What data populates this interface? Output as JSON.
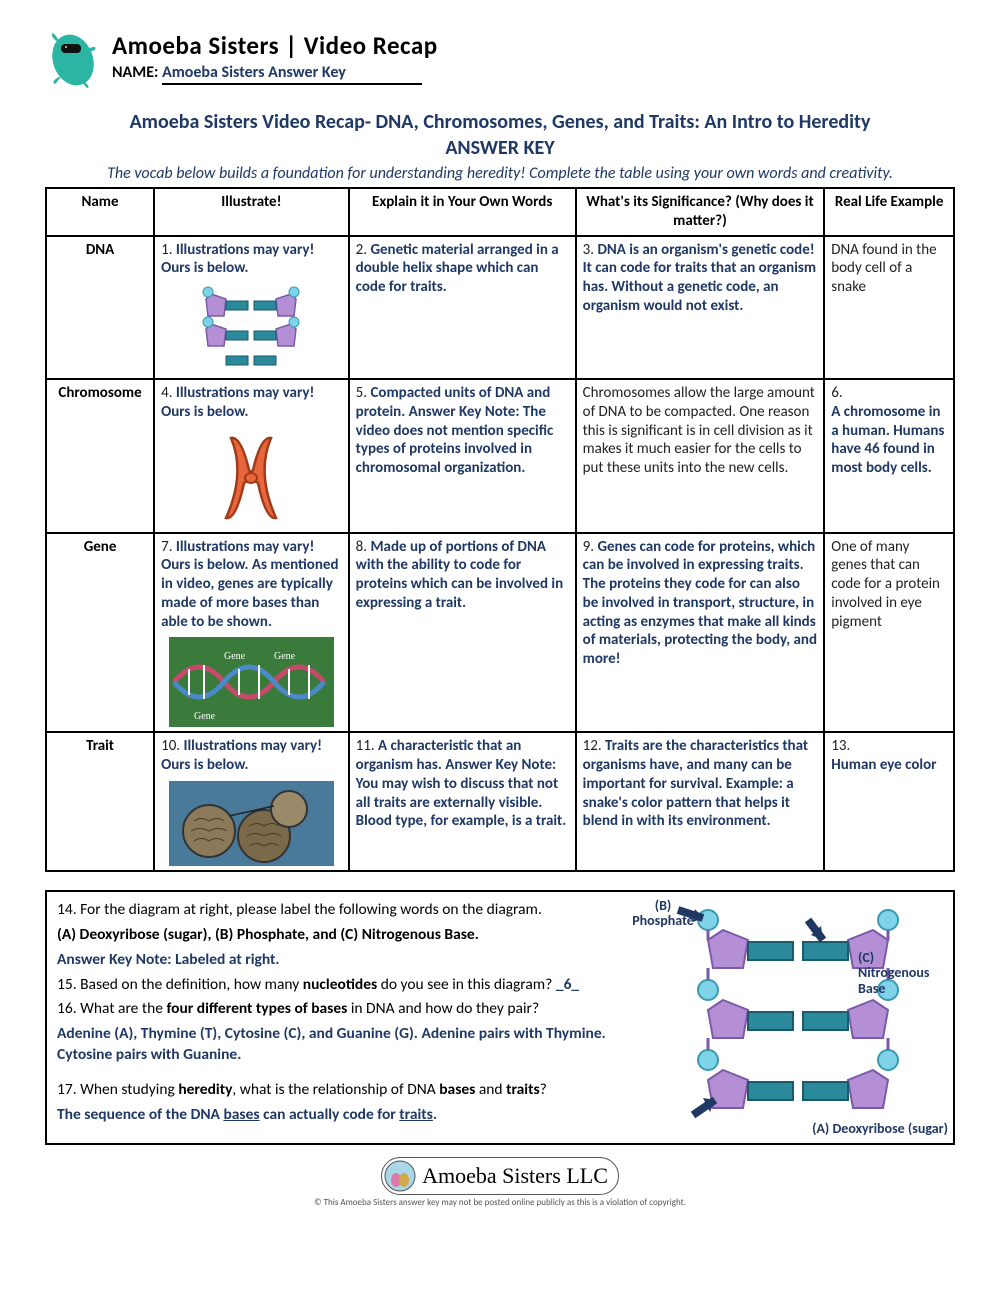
{
  "brand": {
    "title": "Amoeba Sisters | Video Recap",
    "name_label": "NAME:",
    "name_value": "Amoeba Sisters Answer Key"
  },
  "doc": {
    "title": "Amoeba Sisters Video Recap- DNA, Chromosomes, Genes, and Traits: An Intro to Heredity",
    "subtitle": "ANSWER KEY",
    "intro": "The vocab below builds a foundation for understanding heredity! Complete the table using your own words and creativity."
  },
  "headers": {
    "name": "Name",
    "illustrate": "Illustrate!",
    "explain": "Explain it in Your Own Words",
    "significance": "What's its Significance? (Why does it matter?)",
    "real": "Real Life Example"
  },
  "rows": [
    {
      "name": "DNA",
      "illustrate_num": "1.",
      "illustrate_text": "Illustrations may vary! Ours is below.",
      "explain_num": "2.",
      "explain_text": "Genetic material arranged in a double helix shape which can code for traits.",
      "sig_num": "3.",
      "sig_text": "DNA is an organism's genetic code! It can code for traits that an organism has. Without a genetic code, an organism would not exist.",
      "sig_blue": true,
      "real_num": "",
      "real_text": "DNA found in the body cell of a snake",
      "real_blue": false
    },
    {
      "name": "Chromosome",
      "illustrate_num": "4.",
      "illustrate_text": "Illustrations may vary! Ours is below.",
      "explain_num": "5.",
      "explain_text": "Compacted units of DNA and protein. Answer Key Note: The video does not mention specific types of proteins involved in chromosomal organization.",
      "sig_num": "",
      "sig_text": "Chromosomes allow the large amount of DNA to be compacted. One reason this is significant is in cell division as it makes it much easier for the cells to put these units into the new cells.",
      "sig_blue": false,
      "real_num": "6.",
      "real_text": "A chromosome in a human. Humans have 46 found in most body cells.",
      "real_blue": true
    },
    {
      "name": "Gene",
      "illustrate_num": "7.",
      "illustrate_text": "Illustrations may vary! Ours is below. As mentioned in video, genes are typically made of more bases than able to be shown.",
      "explain_num": "8.",
      "explain_text": "Made up of portions of DNA with the ability to code for proteins which can be involved in expressing a trait.",
      "sig_num": "9.",
      "sig_text": "Genes can code for proteins, which can be involved in expressing traits. The proteins they code for can also be involved in transport, structure, in acting as enzymes that make all kinds of materials, protecting the body, and more!",
      "sig_blue": true,
      "real_num": "",
      "real_text": "One of many genes that can code for a protein involved in eye pigment",
      "real_blue": false
    },
    {
      "name": "Trait",
      "illustrate_num": "10.",
      "illustrate_text": "Illustrations may vary! Ours is below.",
      "explain_num": "11.",
      "explain_text": "A characteristic that an organism has. Answer Key Note: You may wish to discuss that not all traits are externally visible. Blood type, for example, is a trait.",
      "sig_num": "12.",
      "sig_text": "Traits are the characteristics that organisms have, and many can be important for survival. Example: a snake's color pattern that helps it blend in with its environment.",
      "sig_blue": true,
      "real_num": "13.",
      "real_text": "Human eye color",
      "real_blue": true
    }
  ],
  "bottom": {
    "q14_intro": "14. For the diagram at right, please label the following words on the diagram.",
    "q14_list": "(A) Deoxyribose (sugar), (B) Phosphate, and (C) Nitrogenous Base.",
    "q14_note": "Answer Key Note: Labeled at right.",
    "q15_pre": "15. Based on the definition, how many ",
    "q15_bold": "nucleotides",
    "q15_post": " do you see in this diagram? ",
    "q15_ans": "_6_",
    "q16_pre": "16. What are the ",
    "q16_bold": "four different types of bases",
    "q16_post": " in DNA and how do they pair?",
    "q16_ans": "Adenine (A), Thymine (T), Cytosine (C), and Guanine (G). Adenine pairs with Thymine. Cytosine pairs with Guanine.",
    "q17_pre": "17. When studying ",
    "q17_bold1": "heredity",
    "q17_mid": ", what is the relationship of DNA ",
    "q17_bold2": "bases",
    "q17_mid2": " and ",
    "q17_bold3": "traits",
    "q17_post": "?",
    "q17_ans_pre": "The sequence of the DNA ",
    "q17_ans_u1": "bases",
    "q17_ans_mid": " can actually code for ",
    "q17_ans_u2": "traits",
    "q17_ans_post": ".",
    "label_b": "(B) Phosphate",
    "label_c": "(C) Nitrogenous Base",
    "label_a": "(A) Deoxyribose (sugar)"
  },
  "footer": {
    "brand": "Amoeba Sisters LLC",
    "fine": "This Amoeba Sisters answer key may not be posted online publicly as this is a violation of copyright."
  },
  "colors": {
    "blue": "#1f3864",
    "amoeba": "#2bb5a3",
    "pentagon": "#b48fd6",
    "phosphate": "#7ed3e8",
    "base": "#2a8a9b",
    "chromosome": "#e8663c",
    "gene_bg": "#3a7a3a",
    "trait_bg": "#3a6a8a"
  }
}
